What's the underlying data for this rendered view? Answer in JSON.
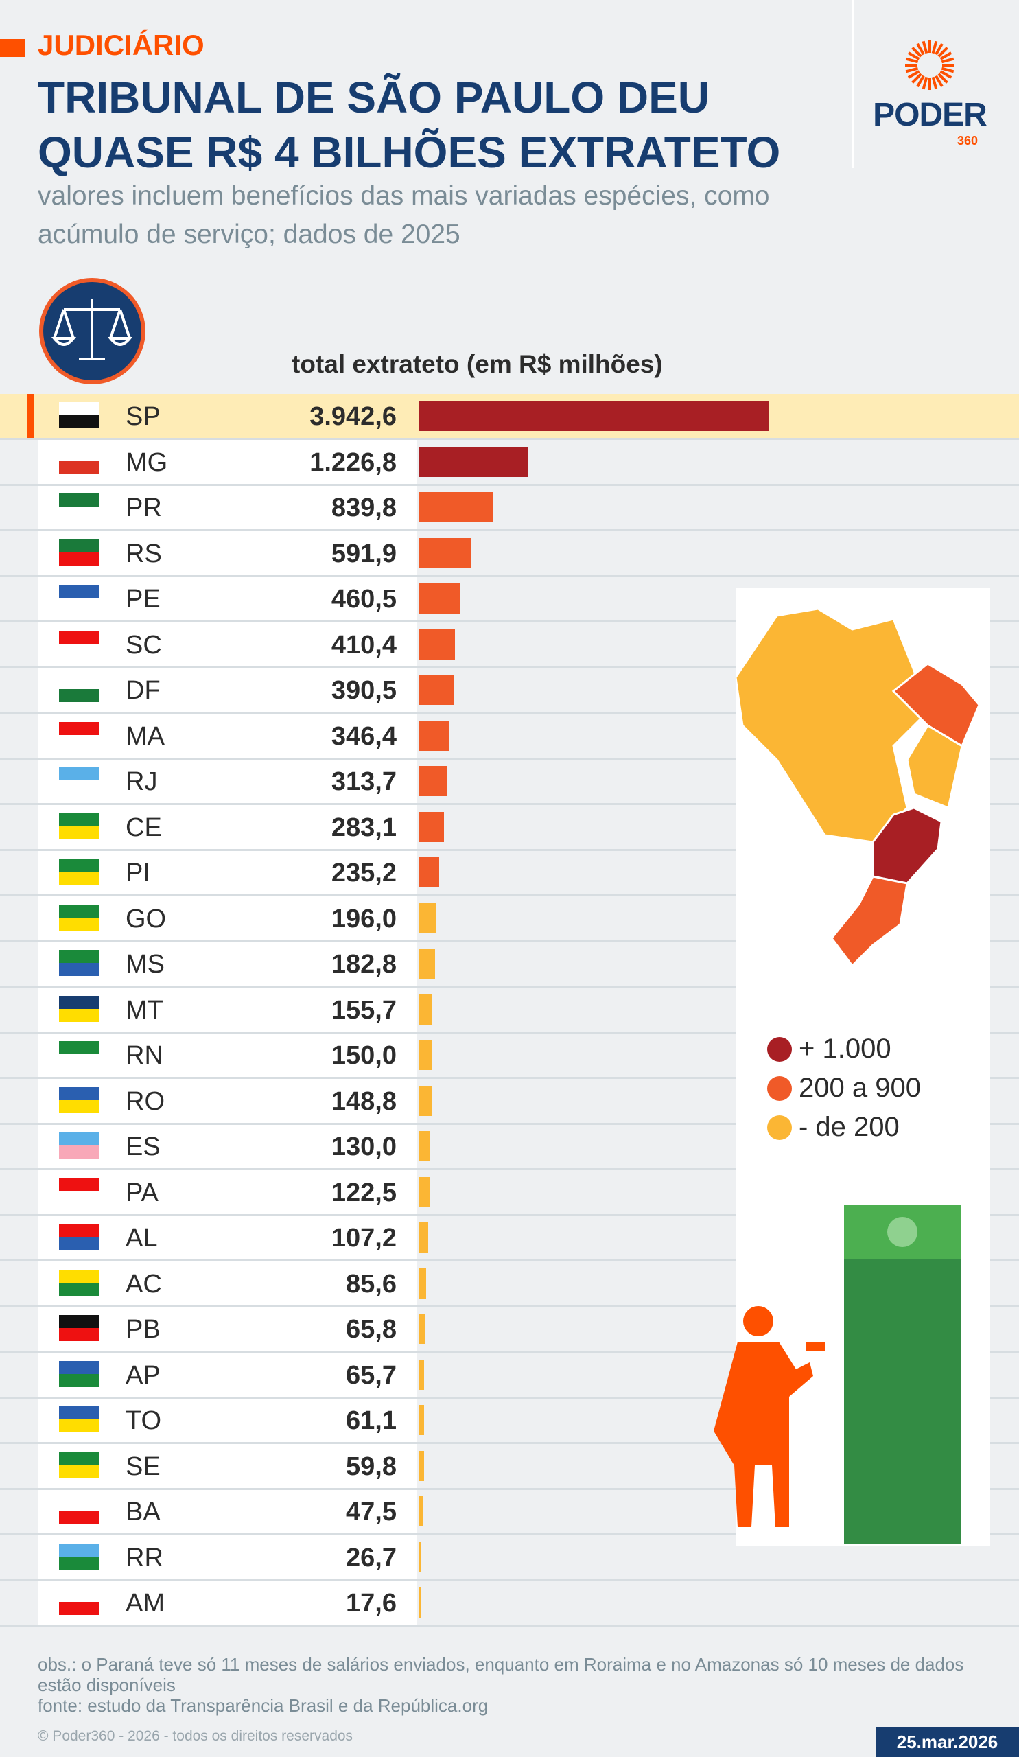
{
  "header": {
    "tag": "JUDICIÁRIO",
    "title": "TRIBUNAL DE SÃO PAULO DEU QUASE R$ 4 BILHÕES EXTRATETO",
    "subtitle": "valores incluem benefícios das mais variadas espécies, como acúmulo de serviço; dados de 2025"
  },
  "logo": {
    "word": "PODER",
    "num": "360"
  },
  "colors": {
    "high": "#a81f24",
    "mid": "#f05a28",
    "low": "#fbb634",
    "accent": "#fe5000",
    "navy": "#173d70"
  },
  "chart_data": {
    "type": "bar",
    "orientation": "horizontal",
    "title": "total extrateto (em R$  milhões)",
    "categories": [
      "SP",
      "MG",
      "PR",
      "RS",
      "PE",
      "SC",
      "DF",
      "MA",
      "RJ",
      "CE",
      "PI",
      "GO",
      "MS",
      "MT",
      "RN",
      "RO",
      "ES",
      "PA",
      "AL",
      "AC",
      "PB",
      "AP",
      "TO",
      "SE",
      "BA",
      "RR",
      "AM"
    ],
    "values": [
      3942.6,
      1226.8,
      839.8,
      591.9,
      460.5,
      410.4,
      390.5,
      346.4,
      313.7,
      283.1,
      235.2,
      196.0,
      182.8,
      155.7,
      150.0,
      148.8,
      130.0,
      122.5,
      107.2,
      85.6,
      65.8,
      65.7,
      61.1,
      59.8,
      47.5,
      26.7,
      17.6
    ],
    "labels": [
      "3.942,6",
      "1.226,8",
      "839,8",
      "591,9",
      "460,5",
      "410,4",
      "390,5",
      "346,4",
      "313,7",
      "283,1",
      "235,2",
      "196,0",
      "182,8",
      "155,7",
      "150,0",
      "148,8",
      "130,0",
      "122,5",
      "107,2",
      "85,6",
      "65,8",
      "65,7",
      "61,1",
      "59,8",
      "47,5",
      "26,7",
      "17,6"
    ],
    "highlight": "SP",
    "legend": [
      {
        "label": "+ 1.000",
        "color": "#a81f24"
      },
      {
        "label": "200 a 900",
        "color": "#f05a28"
      },
      {
        "label": "- de 200",
        "color": "#fbb634"
      }
    ]
  },
  "footer": {
    "obs": "obs.: o Paraná teve só 11 meses de salários enviados, enquanto em Roraima e no Amazonas só 10 meses de dados estão disponíveis",
    "source": "fonte: estudo da Transparência Brasil e da República.org",
    "copyright": "© Poder360 - 2026 - todos os direitos reservados",
    "date": "25.mar.2026"
  }
}
